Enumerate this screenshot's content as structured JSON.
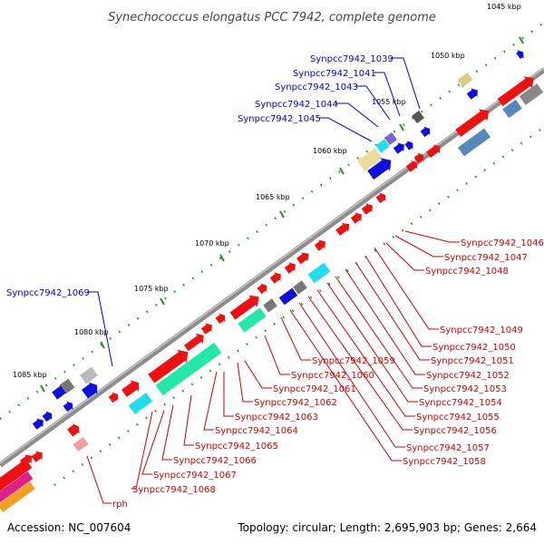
{
  "title": "Synechococcus elongatus PCC 7942, complete genome",
  "footer": {
    "accession": "Accession: NC_007604",
    "topology": "Topology: circular; Length: 2,695,903 bp; Genes: 2,664"
  },
  "kbp_ticks": [
    "1045 kbp",
    "1050 kbp",
    "1055 kbp",
    "1060 kbp",
    "1065 kbp",
    "1070 kbp",
    "1075 kbp",
    "1080 kbp",
    "1085 kbp"
  ],
  "top_labels": [
    "Synpcc7942_1039",
    "Synpcc7942_1041",
    "Synpcc7942_1043",
    "Synpcc7942_1044",
    "Synpcc7942_1045",
    "Synpcc7942_1069"
  ],
  "bottom_labels": [
    "Synpcc7942_1046",
    "Synpcc7942_1047",
    "Synpcc7942_1048",
    "Synpcc7942_1049",
    "Synpcc7942_1050",
    "Synpcc7942_1051",
    "Synpcc7942_1052",
    "Synpcc7942_1053",
    "Synpcc7942_1054",
    "Synpcc7942_1055",
    "Synpcc7942_1056",
    "Synpcc7942_1057",
    "Synpcc7942_1058",
    "Synpcc7942_1059",
    "Synpcc7942_1060",
    "Synpcc7942_1061",
    "Synpcc7942_1062",
    "Synpcc7942_1063",
    "Synpcc7942_1064",
    "Synpcc7942_1065",
    "Synpcc7942_1066",
    "Synpcc7942_1067",
    "Synpcc7942_1068",
    "rph"
  ],
  "colors": {
    "backbone": "#8c8c8c",
    "top_label": "#0000cc",
    "bottom_label": "#cc0000",
    "tick": "#2a8a2a",
    "gene_red": "#ee1111",
    "gene_blue": "#1010dd",
    "gene_cyan": "#22ddee",
    "gene_teal": "#22e8a8",
    "gene_gray": "#777777",
    "gene_khaki": "#d8cc88",
    "gene_steel": "#5588bb"
  }
}
